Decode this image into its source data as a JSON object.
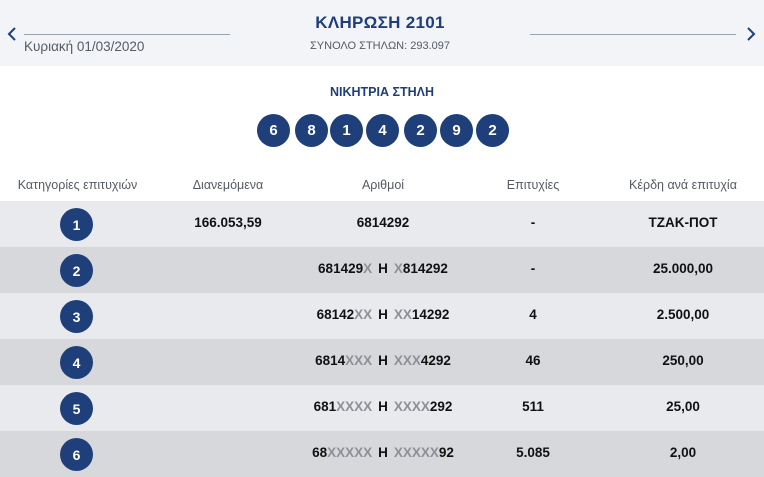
{
  "header": {
    "title": "ΚΛΗΡΩΣΗ 2101",
    "date": "Κυριακή 01/03/2020",
    "total_columns": "ΣΥΝΟΛΟ ΣΤΗΛΩΝ: 293.097"
  },
  "winning": {
    "title": "ΝΙΚΗΤΡΙΑ ΣΤΗΛΗ",
    "numbers": [
      "6",
      "8",
      "1",
      "4",
      "2",
      "9",
      "2"
    ]
  },
  "table": {
    "headers": {
      "category": "Κατηγορίες επιτυχιών",
      "distributed": "Διανεμόμενα",
      "numbers": "Αριθμοί",
      "winners": "Επιτυχίες",
      "prize": "Κέρδη ανά επιτυχία"
    },
    "connector": "Η",
    "rows": [
      {
        "category": "1",
        "distributed": "166.053,59",
        "numbers_a": "6814292",
        "numbers_a_mask": "",
        "numbers_b_mask": "",
        "numbers_b": "",
        "winners": "-",
        "prize": "ΤΖΑΚ-ΠΟΤ"
      },
      {
        "category": "2",
        "distributed": "",
        "numbers_a": "681429",
        "numbers_a_mask": "X",
        "numbers_b_mask": "X",
        "numbers_b": "814292",
        "winners": "-",
        "prize": "25.000,00"
      },
      {
        "category": "3",
        "distributed": "",
        "numbers_a": "68142",
        "numbers_a_mask": "XX",
        "numbers_b_mask": "XX",
        "numbers_b": "14292",
        "winners": "4",
        "prize": "2.500,00"
      },
      {
        "category": "4",
        "distributed": "",
        "numbers_a": "6814",
        "numbers_a_mask": "XXX",
        "numbers_b_mask": "XXX",
        "numbers_b": "4292",
        "winners": "46",
        "prize": "250,00"
      },
      {
        "category": "5",
        "distributed": "",
        "numbers_a": "681",
        "numbers_a_mask": "XXXX",
        "numbers_b_mask": "XXXX",
        "numbers_b": "292",
        "winners": "511",
        "prize": "25,00"
      },
      {
        "category": "6",
        "distributed": "",
        "numbers_a": "68",
        "numbers_a_mask": "XXXXX",
        "numbers_b_mask": "XXXXX",
        "numbers_b": "92",
        "winners": "5.085",
        "prize": "2,00"
      }
    ]
  },
  "colors": {
    "accent": "#1e3f7a",
    "row_light": "#e8eaed",
    "row_dark": "#d6d8db",
    "mask": "#8d9096"
  },
  "icons": {
    "prev": "chevron-left-icon",
    "next": "chevron-right-icon"
  }
}
